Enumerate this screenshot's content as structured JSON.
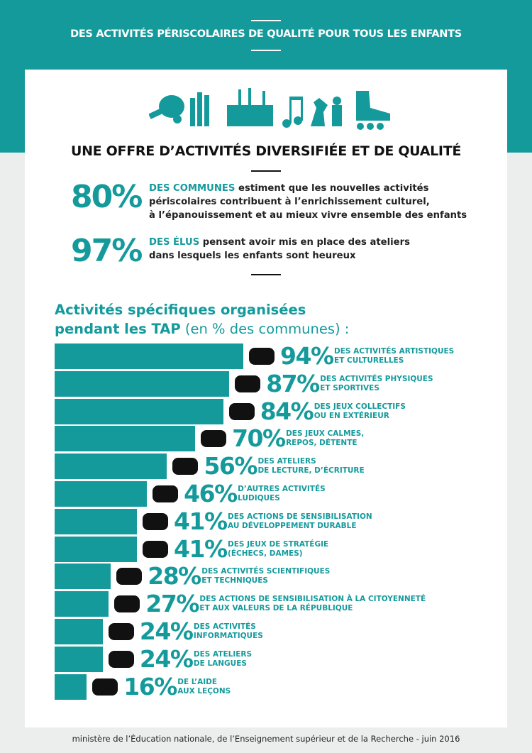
{
  "header": {
    "title": "DES ACTIVITÉS PÉRISCOLAIRES DE QUALITÉ POUR TOUS LES ENFANTS"
  },
  "section": {
    "title": "UNE OFFRE D’ACTIVITÉS DIVERSIFIÉE ET DE QUALITÉ"
  },
  "stats": [
    {
      "figure": "80%",
      "lead": "DES COMMUNES",
      "text": " estiment que les nouvelles activités\npériscolaires contribuent à l’enrichissement culturel,\nà l’épanouissement et au mieux vivre ensemble des enfants"
    },
    {
      "figure": "97%",
      "lead": "DES ÉLUS",
      "text": " pensent avoir mis en place des ateliers\ndans lesquels les enfants sont heureux"
    }
  ],
  "chart_data": {
    "type": "bar",
    "orientation": "horizontal",
    "title": "Activités spécifiques organisées pendant les TAP",
    "subtitle": "(en % des communes) :",
    "color": "#159a9c",
    "categories": [
      "DES ACTIVITÉS ARTISTIQUES\nET CULTURELLES",
      "DES ACTIVITÉS PHYSIQUES\nET SPORTIVES",
      "DES JEUX COLLECTIFS\nOU EN EXTÉRIEUR",
      "DES JEUX CALMES,\nREPOS, DÉTENTE",
      "DES ATELIERS\nDE LECTURE, D’ÉCRITURE",
      "D’AUTRES ACTIVITÉS\nLUDIQUES",
      "DES ACTIONS DE SENSIBILISATION\nAU DÉVELOPPEMENT DURABLE",
      "DES JEUX DE STRATÉGIE\n(ÉCHECS, DAMES)",
      "DES ACTIVITÉS SCIENTIFIQUES\nET TECHNIQUES",
      "DES ACTIONS DE SENSIBILISATION À LA CITOYENNETÉ\nET AUX VALEURS DE LA RÉPUBLIQUE",
      "DES ACTIVITÉS\nINFORMATIQUES",
      "DES ATELIERS\nDE LANGUES",
      "DE L’AIDE\nAUX LEÇONS"
    ],
    "values": [
      94,
      87,
      84,
      70,
      56,
      46,
      41,
      41,
      28,
      27,
      24,
      24,
      16
    ],
    "value_labels": [
      "94%",
      "87%",
      "84%",
      "70%",
      "56%",
      "46%",
      "41%",
      "41%",
      "28%",
      "27%",
      "24%",
      "24%",
      "16%"
    ]
  },
  "footer": {
    "text": "ministère de l’Éducation nationale, de l’Enseignement supérieur et de la Recherche - juin 2016"
  }
}
